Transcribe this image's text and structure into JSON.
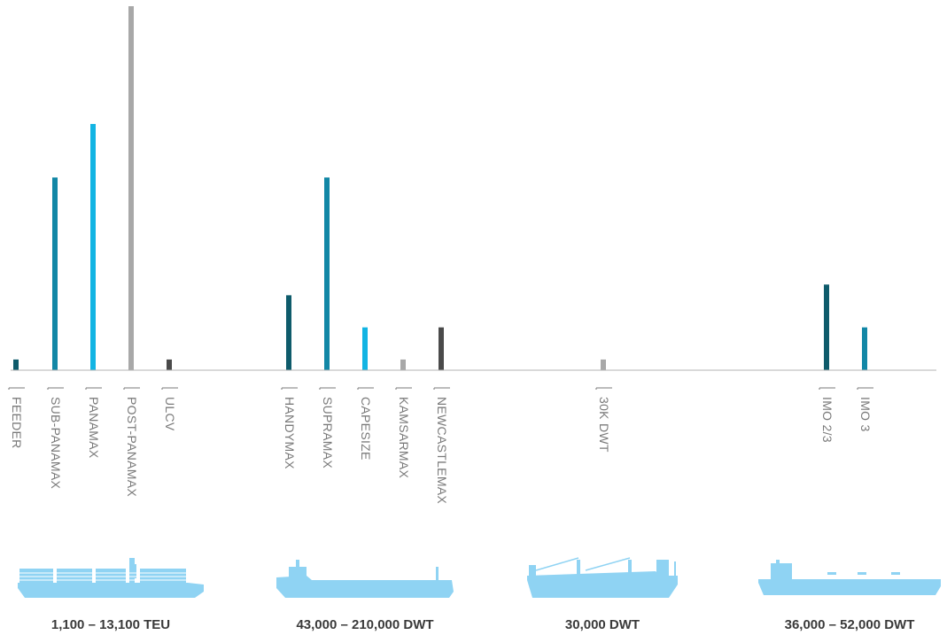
{
  "chart_data": {
    "type": "bar",
    "title": "",
    "xlabel": "",
    "ylabel": "",
    "ylim": [
      0,
      34
    ],
    "grid": false,
    "legend": "none",
    "categories": [
      "FEEDER",
      "SUB-PANAMAX",
      "PANAMAX",
      "POST-PANAMAX",
      "ULCV",
      "HANDYMAX",
      "SUPRAMAX",
      "CAPESIZE",
      "KAMSARMAX",
      "NEWCASTLEMAX",
      "30K DWT",
      "IMO 2/3",
      "IMO 3"
    ],
    "values": [
      1,
      18,
      23,
      34,
      1,
      7,
      18,
      4,
      1,
      4,
      1,
      8,
      4
    ],
    "bar_colors": [
      "#0e5b6b",
      "#1287a6",
      "#12b4e3",
      "#a8a8a8",
      "#4a4a4a",
      "#0e5b6b",
      "#1287a6",
      "#12b4e3",
      "#a8a8a8",
      "#4a4a4a",
      "#a8a8a8",
      "#0e5b6b",
      "#1287a6"
    ],
    "groups": [
      {
        "label": "1,100 – 13,100 TEU",
        "icon": "container-ship-icon",
        "members": [
          0,
          1,
          2,
          3,
          4
        ]
      },
      {
        "label": "43,000 – 210,000 DWT",
        "icon": "bulk-carrier-icon",
        "members": [
          5,
          6,
          7,
          8,
          9
        ]
      },
      {
        "label": "30,000 DWT",
        "icon": "general-cargo-ship-icon",
        "members": [
          10
        ]
      },
      {
        "label": "36,000 – 52,000 DWT",
        "icon": "tanker-ship-icon",
        "members": [
          11,
          12
        ]
      }
    ]
  },
  "colors": {
    "ship_fill": "#8fd3f3",
    "axis": "#b3b3b3",
    "label": "#7a7a7a"
  }
}
